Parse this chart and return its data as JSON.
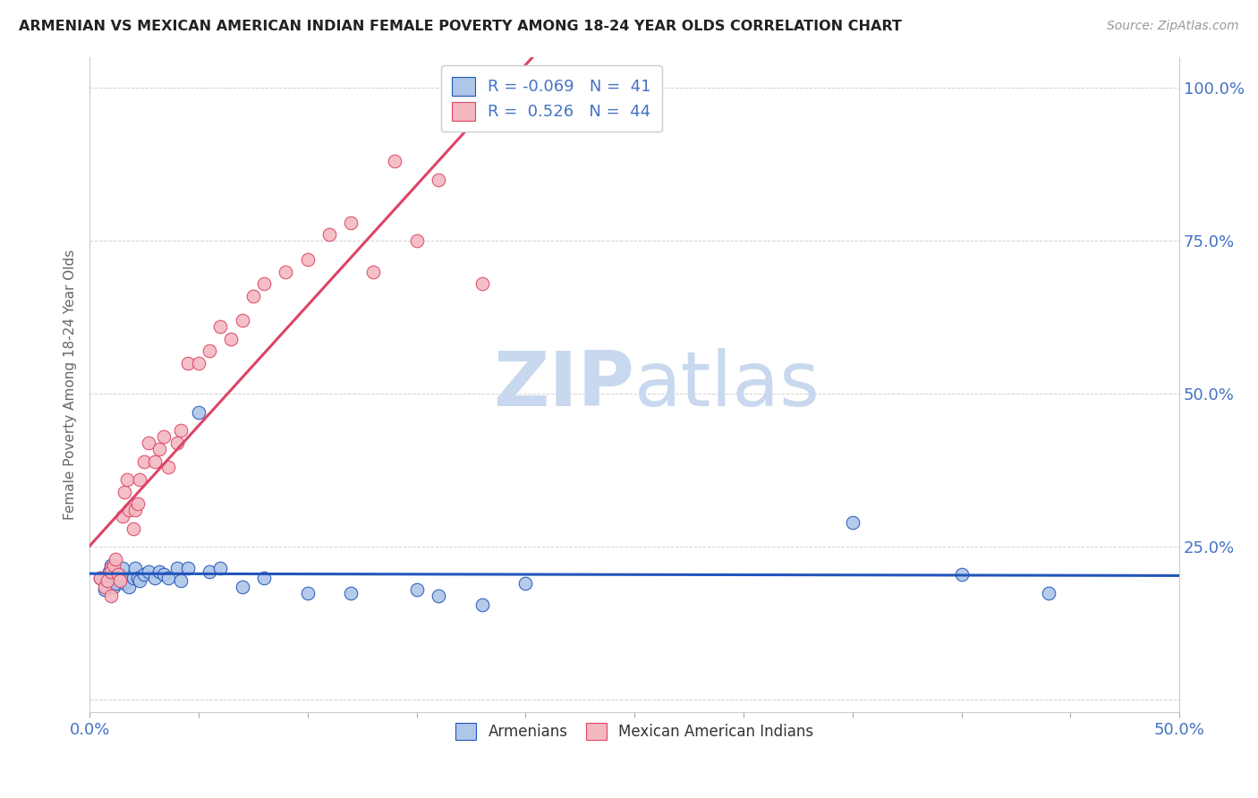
{
  "title": "ARMENIAN VS MEXICAN AMERICAN INDIAN FEMALE POVERTY AMONG 18-24 YEAR OLDS CORRELATION CHART",
  "source": "Source: ZipAtlas.com",
  "ylabel": "Female Poverty Among 18-24 Year Olds",
  "xlim": [
    0.0,
    0.5
  ],
  "ylim": [
    -0.02,
    1.05
  ],
  "legend_armenian": "Armenians",
  "legend_mexican": "Mexican American Indians",
  "r_armenian": -0.069,
  "n_armenian": 41,
  "r_mexican": 0.526,
  "n_mexican": 44,
  "armenian_color": "#aec6e8",
  "mexican_color": "#f4b8c1",
  "trendline_armenian_color": "#2255bb",
  "trendline_mexican_color": "#dd4466",
  "watermark_zip": "ZIP",
  "watermark_atlas": "atlas",
  "watermark_color": "#c8d8ee",
  "background_color": "#ffffff",
  "arm_x": [
    0.005,
    0.007,
    0.008,
    0.009,
    0.01,
    0.01,
    0.011,
    0.012,
    0.013,
    0.014,
    0.015,
    0.016,
    0.017,
    0.018,
    0.02,
    0.021,
    0.022,
    0.023,
    0.025,
    0.027,
    0.03,
    0.032,
    0.034,
    0.036,
    0.04,
    0.042,
    0.045,
    0.05,
    0.055,
    0.06,
    0.07,
    0.08,
    0.1,
    0.12,
    0.15,
    0.16,
    0.18,
    0.2,
    0.35,
    0.4,
    0.44
  ],
  "arm_y": [
    0.2,
    0.18,
    0.195,
    0.21,
    0.215,
    0.22,
    0.185,
    0.19,
    0.2,
    0.205,
    0.215,
    0.19,
    0.195,
    0.185,
    0.2,
    0.215,
    0.2,
    0.195,
    0.205,
    0.21,
    0.2,
    0.21,
    0.205,
    0.2,
    0.215,
    0.195,
    0.215,
    0.47,
    0.21,
    0.215,
    0.185,
    0.2,
    0.175,
    0.175,
    0.18,
    0.17,
    0.155,
    0.19,
    0.29,
    0.205,
    0.175
  ],
  "mex_x": [
    0.005,
    0.007,
    0.008,
    0.01,
    0.01,
    0.01,
    0.011,
    0.012,
    0.013,
    0.014,
    0.015,
    0.016,
    0.017,
    0.018,
    0.02,
    0.021,
    0.022,
    0.023,
    0.025,
    0.027,
    0.03,
    0.032,
    0.034,
    0.036,
    0.04,
    0.042,
    0.045,
    0.05,
    0.055,
    0.06,
    0.065,
    0.07,
    0.075,
    0.08,
    0.09,
    0.1,
    0.11,
    0.12,
    0.13,
    0.14,
    0.15,
    0.16,
    0.18,
    0.2
  ],
  "mex_y": [
    0.2,
    0.185,
    0.195,
    0.17,
    0.215,
    0.21,
    0.22,
    0.23,
    0.205,
    0.195,
    0.3,
    0.34,
    0.36,
    0.31,
    0.28,
    0.31,
    0.32,
    0.36,
    0.39,
    0.42,
    0.39,
    0.41,
    0.43,
    0.38,
    0.42,
    0.44,
    0.55,
    0.55,
    0.57,
    0.61,
    0.59,
    0.62,
    0.66,
    0.68,
    0.7,
    0.72,
    0.76,
    0.78,
    0.7,
    0.88,
    0.75,
    0.85,
    0.68,
    0.96
  ]
}
